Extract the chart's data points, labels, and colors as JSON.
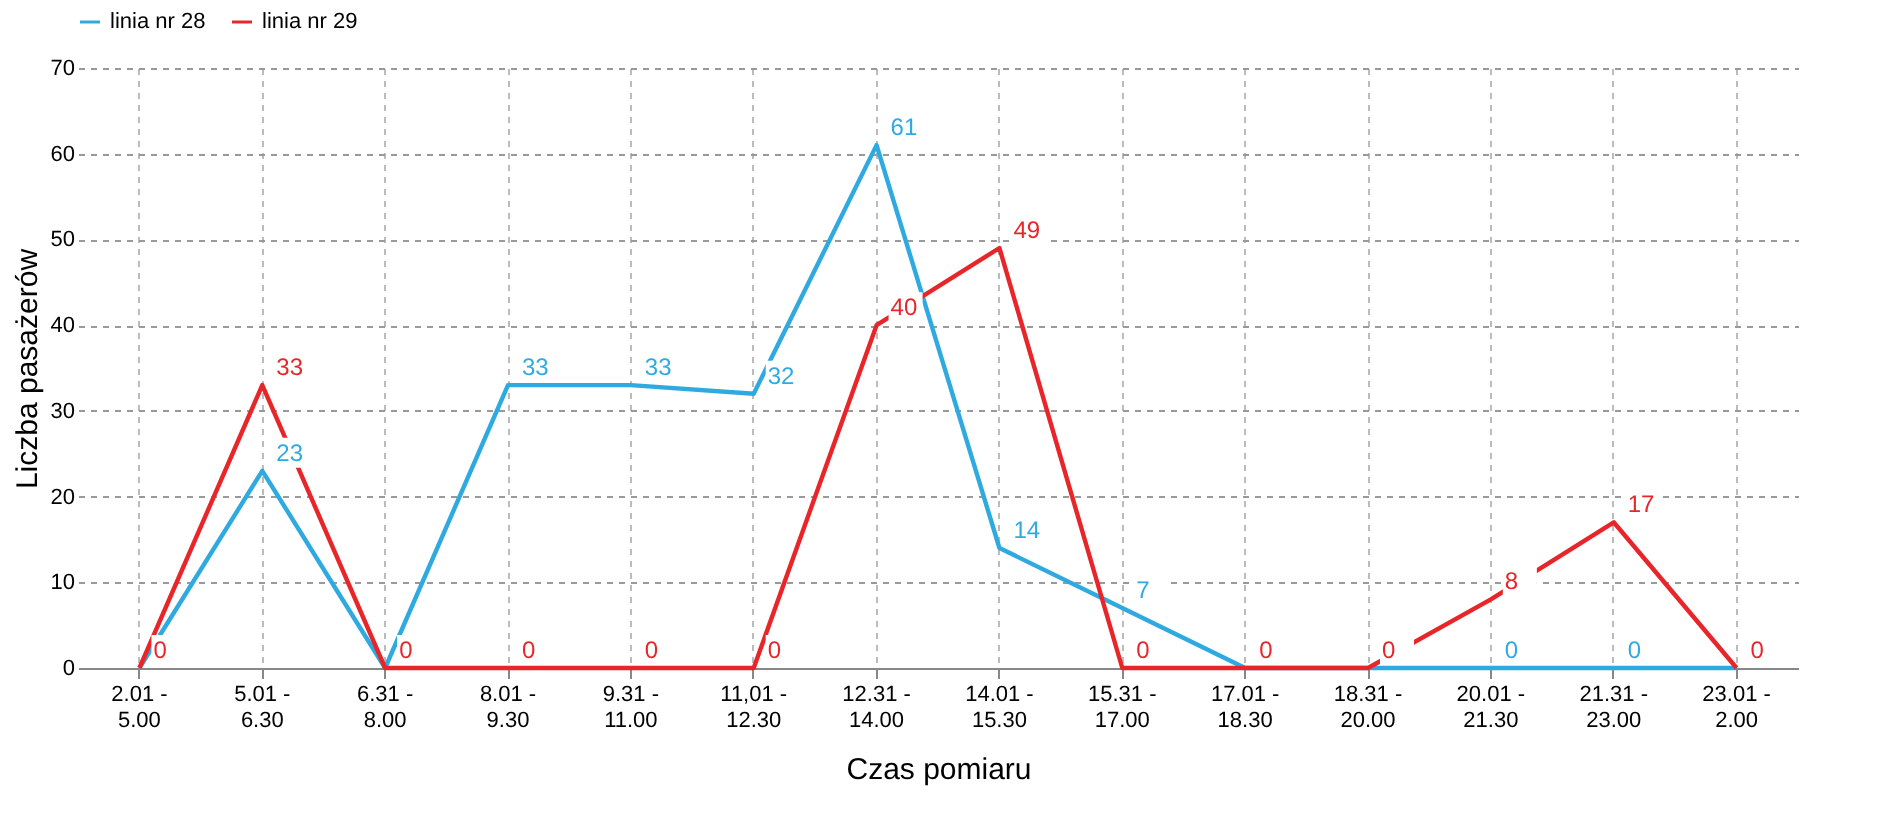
{
  "chart_data": {
    "type": "line",
    "xlabel": "Czas pomiaru",
    "ylabel": "Liczba pasażerów",
    "categories": [
      "2.01 - 5.00",
      "5.01 - 6.30",
      "6.31 - 8.00",
      "8.01 - 9.30",
      "9.31 - 11.00",
      "11,01 - 12.30",
      "12.31 - 14.00",
      "14.01 - 15.30",
      "15.31 - 17.00",
      "17.01 - 18.30",
      "18.31 - 20.00",
      "20.01 - 21.30",
      "21.31 - 23.00",
      "23.01 - 2.00"
    ],
    "series": [
      {
        "name": "linia nr 28",
        "color": "#2eaae1",
        "values": [
          0,
          23,
          0,
          33,
          33,
          32,
          61,
          14,
          7,
          0,
          0,
          0,
          0,
          0
        ],
        "value_labels": [
          null,
          "23",
          null,
          "33",
          "33",
          "32",
          "61",
          "14",
          "7",
          null,
          null,
          "0",
          "0",
          null
        ]
      },
      {
        "name": "linia nr 29",
        "color": "#e8262a",
        "values": [
          0,
          33,
          0,
          0,
          0,
          0,
          40,
          49,
          0,
          0,
          0,
          8,
          17,
          0
        ],
        "value_labels": [
          "0",
          "33",
          "0",
          "0",
          "0",
          "0",
          "40",
          "49",
          "0",
          "0",
          "0",
          "8",
          "17",
          "0"
        ]
      }
    ],
    "ylim": [
      0,
      70
    ],
    "yticks": [
      0,
      10,
      20,
      30,
      40,
      50,
      60,
      70
    ],
    "grid": true,
    "legend": "top",
    "marker": "none",
    "line_style": "solid"
  }
}
